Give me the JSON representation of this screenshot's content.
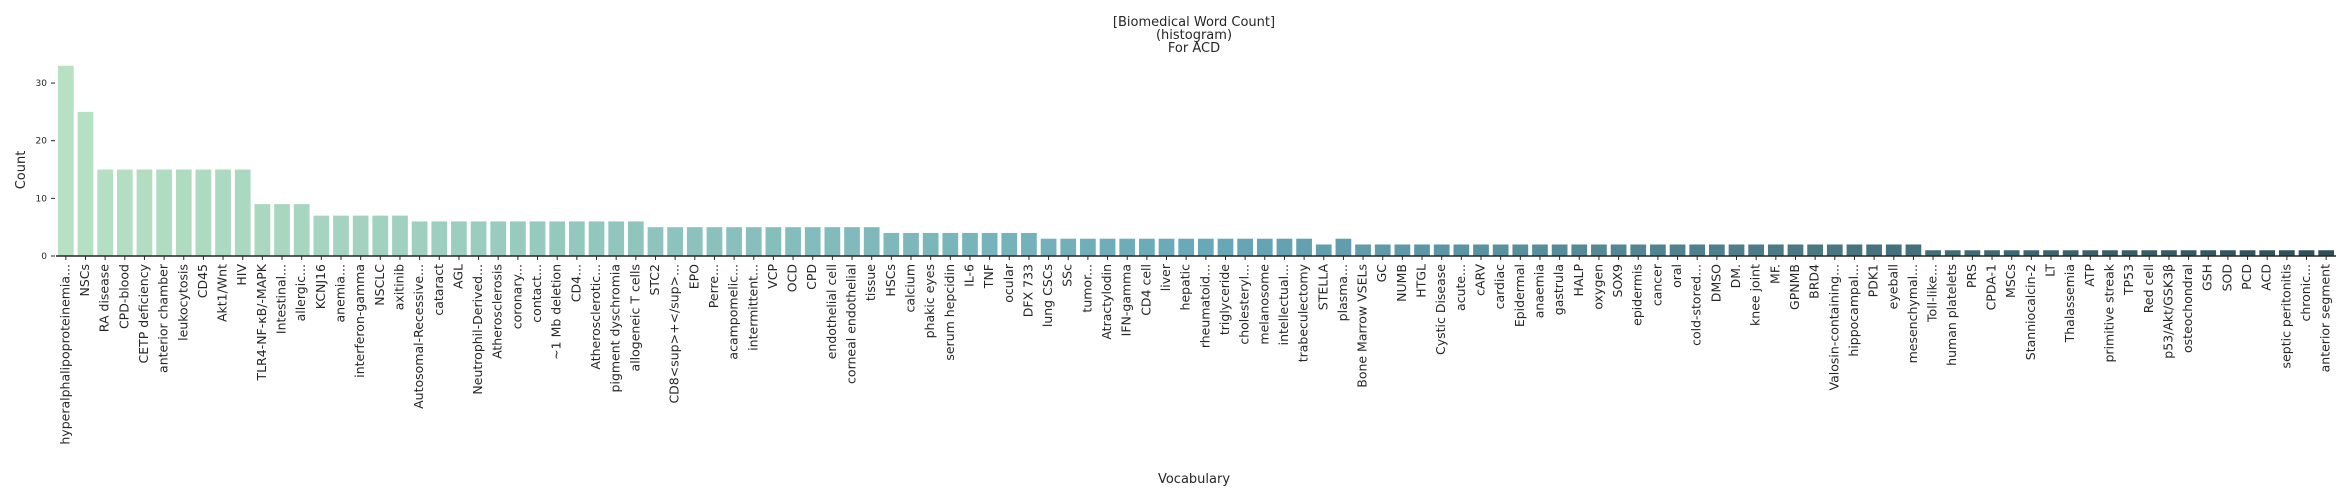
{
  "chart_data": {
    "type": "bar",
    "title_lines": [
      "[Biomedical Word Count]",
      "(histogram)",
      "For ACD"
    ],
    "xlabel": "Vocabulary",
    "ylabel": "Count",
    "ylim": [
      0,
      34
    ],
    "yticks": [
      0,
      10,
      20,
      30
    ],
    "grid": false,
    "legend": "none",
    "palette": [
      "#b7e1c2",
      "#69a9b9",
      "#2e4f56"
    ],
    "categories": [
      "hyperalphalipoproteinemia...",
      "NSCs",
      "RA disease",
      "CPD-blood",
      "CETP deficiency",
      "anterior chamber",
      "leukocytosis",
      "CD45",
      "Akt1/Wnt",
      "HIV",
      "TLR4-NF-κB/-MAPK",
      "Intestinal...",
      "allergic...",
      "KCNJ16",
      "anemia...",
      "interferon-gamma",
      "NSCLC",
      "axitinib",
      "Autosomal-Recessive...",
      "cataract",
      "AGL",
      "Neutrophil-Derived...",
      "Atherosclerosis",
      "coronary...",
      "contact...",
      "~1 Mb deletion",
      "CD4...",
      "Atherosclerotic...",
      "pigment dyschromia",
      "allogeneic T cells",
      "STC2",
      "CD8<sup>+</sup>...",
      "EPO",
      "Perre...",
      "acampomelic...",
      "intermittent...",
      "VCP",
      "OCD",
      "CPD",
      "endothelial cell",
      "corneal endothelial",
      "tissue",
      "HSCs",
      "calcium",
      "phakic eyes",
      "serum hepcidin",
      "IL-6",
      "TNF",
      "ocular",
      "DFX 733",
      "lung CSCs",
      "SSc",
      "tumor...",
      "Atractylodin",
      "IFN-gamma",
      "CD4 cell",
      "liver",
      "hepatic",
      "rheumatoid...",
      "triglyceride",
      "cholesteryl...",
      "melanosome",
      "intellectual...",
      "trabeculectomy",
      "STELLA",
      "plasma...",
      "Bone Marrow VSELs",
      "GC",
      "NUMB",
      "HTGL",
      "Cystic Disease",
      "acute...",
      "cARV",
      "cardiac",
      "Epidermal",
      "anaemia",
      "gastrula",
      "HALP",
      "oxygen",
      "SOX9",
      "epidermis",
      "cancer",
      "oral",
      "cold-stored...",
      "DMSO",
      "DM.",
      "knee joint",
      "MF.",
      "GPNMB",
      "BRD4",
      "Valosin-containing...",
      "hippocampal...",
      "PDK1",
      "eyeball",
      "mesenchymal...",
      "Toll-like...",
      "human platelets",
      "PRS",
      "CPDA-1",
      "MSCs",
      "Stanniocalcin-2",
      "LT",
      "Thalassemia",
      "ATP",
      "primitive streak",
      "TP53",
      "Red cell",
      "p53/Akt/GSK3β",
      "osteochondral",
      "GSH",
      "SOD",
      "PCD",
      "ACD",
      "septic peritonitis",
      "chronic...",
      "anterior segment"
    ],
    "values": [
      33,
      25,
      15,
      15,
      15,
      15,
      15,
      15,
      15,
      15,
      9,
      9,
      9,
      7,
      7,
      7,
      7,
      7,
      6,
      6,
      6,
      6,
      6,
      6,
      6,
      6,
      6,
      6,
      6,
      6,
      5,
      5,
      5,
      5,
      5,
      5,
      5,
      5,
      5,
      5,
      5,
      5,
      4,
      4,
      4,
      4,
      4,
      4,
      4,
      4,
      3,
      3,
      3,
      3,
      3,
      3,
      3,
      3,
      3,
      3,
      3,
      3,
      3,
      3,
      2,
      3,
      2,
      2,
      2,
      2,
      2,
      2,
      2,
      2,
      2,
      2,
      2,
      2,
      2,
      2,
      2,
      2,
      2,
      2,
      2,
      2,
      2,
      2,
      2,
      2,
      2,
      2,
      2,
      2,
      2,
      1,
      1,
      1,
      1,
      1,
      1,
      1,
      1,
      1,
      1,
      1,
      1,
      1,
      1,
      1,
      1,
      1,
      1,
      1,
      1,
      1
    ]
  }
}
